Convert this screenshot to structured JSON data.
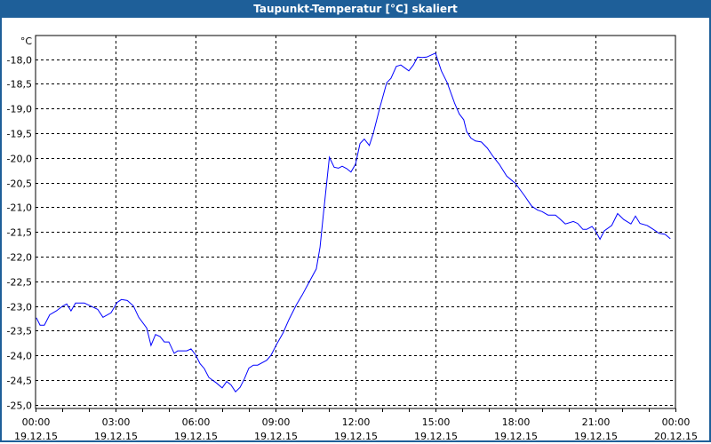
{
  "window": {
    "title": "Taupunkt-Temperatur [°C] skaliert"
  },
  "chart_data": {
    "type": "line",
    "title": "Taupunkt-Temperatur [°C] skaliert",
    "ylabel": "°C",
    "xlabel": "",
    "ylim": [
      -25.0,
      -17.5
    ],
    "xlim_hours": [
      0,
      24
    ],
    "grid": true,
    "y_ticks": [
      {
        "value": -18.0,
        "label": "-18,0"
      },
      {
        "value": -18.5,
        "label": "-18,5"
      },
      {
        "value": -19.0,
        "label": "-19,0"
      },
      {
        "value": -19.5,
        "label": "-19,5"
      },
      {
        "value": -20.0,
        "label": "-20,0"
      },
      {
        "value": -20.5,
        "label": "-20,5"
      },
      {
        "value": -21.0,
        "label": "-21,0"
      },
      {
        "value": -21.5,
        "label": "-21,5"
      },
      {
        "value": -22.0,
        "label": "-22,0"
      },
      {
        "value": -22.5,
        "label": "-22,5"
      },
      {
        "value": -23.0,
        "label": "-23,0"
      },
      {
        "value": -23.5,
        "label": "-23,5"
      },
      {
        "value": -24.0,
        "label": "-24,0"
      },
      {
        "value": -24.5,
        "label": "-24,5"
      },
      {
        "value": -25.0,
        "label": "-25,0"
      }
    ],
    "x_ticks": [
      {
        "hour": 0,
        "time": "00:00",
        "date": "19.12.15"
      },
      {
        "hour": 3,
        "time": "03:00",
        "date": "19.12.15"
      },
      {
        "hour": 6,
        "time": "06:00",
        "date": "19.12.15"
      },
      {
        "hour": 9,
        "time": "09:00",
        "date": "19.12.15"
      },
      {
        "hour": 12,
        "time": "12:00",
        "date": "19.12.15"
      },
      {
        "hour": 15,
        "time": "15:00",
        "date": "19.12.15"
      },
      {
        "hour": 18,
        "time": "18:00",
        "date": "19.12.15"
      },
      {
        "hour": 21,
        "time": "21:00",
        "date": "19.12.15"
      },
      {
        "hour": 24,
        "time": "00:00",
        "date": "20.12.15"
      }
    ],
    "series": [
      {
        "name": "Taupunkt-Temperatur",
        "color": "#0000ff",
        "points": [
          [
            0.03,
            -23.24
          ],
          [
            0.17,
            -23.39
          ],
          [
            0.33,
            -23.39
          ],
          [
            0.53,
            -23.18
          ],
          [
            0.78,
            -23.1
          ],
          [
            1.0,
            -23.01
          ],
          [
            1.17,
            -22.96
          ],
          [
            1.33,
            -23.1
          ],
          [
            1.5,
            -22.94
          ],
          [
            1.83,
            -22.94
          ],
          [
            2.33,
            -23.07
          ],
          [
            2.53,
            -23.23
          ],
          [
            2.83,
            -23.14
          ],
          [
            3.06,
            -22.93
          ],
          [
            3.22,
            -22.87
          ],
          [
            3.44,
            -22.89
          ],
          [
            3.67,
            -23.0
          ],
          [
            3.87,
            -23.23
          ],
          [
            4.17,
            -23.45
          ],
          [
            4.33,
            -23.8
          ],
          [
            4.5,
            -23.58
          ],
          [
            4.67,
            -23.62
          ],
          [
            4.83,
            -23.73
          ],
          [
            5.0,
            -23.73
          ],
          [
            5.2,
            -23.96
          ],
          [
            5.33,
            -23.91
          ],
          [
            5.67,
            -23.91
          ],
          [
            5.83,
            -23.87
          ],
          [
            6.0,
            -23.99
          ],
          [
            6.17,
            -24.17
          ],
          [
            6.33,
            -24.27
          ],
          [
            6.5,
            -24.45
          ],
          [
            6.78,
            -24.56
          ],
          [
            7.0,
            -24.66
          ],
          [
            7.17,
            -24.53
          ],
          [
            7.33,
            -24.6
          ],
          [
            7.5,
            -24.74
          ],
          [
            7.67,
            -24.65
          ],
          [
            7.83,
            -24.48
          ],
          [
            8.0,
            -24.26
          ],
          [
            8.17,
            -24.2
          ],
          [
            8.33,
            -24.2
          ],
          [
            8.67,
            -24.1
          ],
          [
            8.83,
            -24.0
          ],
          [
            9.06,
            -23.76
          ],
          [
            9.28,
            -23.55
          ],
          [
            9.5,
            -23.28
          ],
          [
            9.78,
            -22.98
          ],
          [
            10.0,
            -22.78
          ],
          [
            10.22,
            -22.56
          ],
          [
            10.53,
            -22.25
          ],
          [
            10.67,
            -21.81
          ],
          [
            10.8,
            -21.12
          ],
          [
            10.94,
            -20.4
          ],
          [
            11.02,
            -19.99
          ],
          [
            11.2,
            -20.19
          ],
          [
            11.36,
            -20.21
          ],
          [
            11.5,
            -20.17
          ],
          [
            11.67,
            -20.22
          ],
          [
            11.83,
            -20.29
          ],
          [
            12.0,
            -20.13
          ],
          [
            12.17,
            -19.71
          ],
          [
            12.33,
            -19.62
          ],
          [
            12.52,
            -19.75
          ],
          [
            12.67,
            -19.5
          ],
          [
            12.91,
            -18.99
          ],
          [
            13.17,
            -18.48
          ],
          [
            13.33,
            -18.39
          ],
          [
            13.53,
            -18.15
          ],
          [
            13.7,
            -18.12
          ],
          [
            14.0,
            -18.24
          ],
          [
            14.17,
            -18.12
          ],
          [
            14.33,
            -17.96
          ],
          [
            14.5,
            -17.97
          ],
          [
            14.67,
            -17.96
          ],
          [
            15.0,
            -17.88
          ],
          [
            15.22,
            -18.24
          ],
          [
            15.44,
            -18.48
          ],
          [
            15.72,
            -18.9
          ],
          [
            15.89,
            -19.11
          ],
          [
            16.06,
            -19.23
          ],
          [
            16.17,
            -19.47
          ],
          [
            16.33,
            -19.6
          ],
          [
            16.5,
            -19.66
          ],
          [
            16.72,
            -19.68
          ],
          [
            16.94,
            -19.8
          ],
          [
            17.17,
            -19.98
          ],
          [
            17.39,
            -20.13
          ],
          [
            17.67,
            -20.37
          ],
          [
            18.0,
            -20.52
          ],
          [
            18.33,
            -20.76
          ],
          [
            18.61,
            -20.98
          ],
          [
            18.83,
            -21.06
          ],
          [
            19.0,
            -21.09
          ],
          [
            19.22,
            -21.16
          ],
          [
            19.5,
            -21.16
          ],
          [
            19.67,
            -21.24
          ],
          [
            19.87,
            -21.34
          ],
          [
            20.17,
            -21.29
          ],
          [
            20.33,
            -21.33
          ],
          [
            20.53,
            -21.45
          ],
          [
            20.67,
            -21.45
          ],
          [
            20.87,
            -21.39
          ],
          [
            21.0,
            -21.48
          ],
          [
            21.17,
            -21.65
          ],
          [
            21.33,
            -21.48
          ],
          [
            21.61,
            -21.37
          ],
          [
            21.83,
            -21.13
          ],
          [
            22.06,
            -21.25
          ],
          [
            22.33,
            -21.34
          ],
          [
            22.5,
            -21.18
          ],
          [
            22.67,
            -21.33
          ],
          [
            22.94,
            -21.37
          ],
          [
            23.17,
            -21.45
          ],
          [
            23.39,
            -21.53
          ],
          [
            23.61,
            -21.55
          ],
          [
            23.81,
            -21.64
          ]
        ]
      }
    ]
  }
}
